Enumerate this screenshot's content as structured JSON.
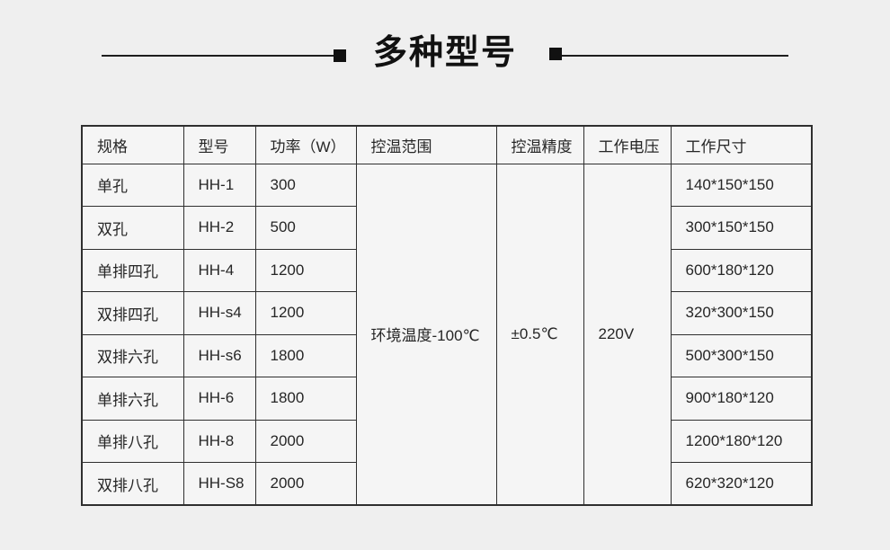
{
  "title": "多种型号",
  "table": {
    "headers": [
      "规格",
      "型号",
      "功率（W）",
      "控温范围",
      "控温精度",
      "工作电压",
      "工作尺寸"
    ],
    "merged": {
      "temp_range": "环境温度-100℃",
      "precision": "±0.5℃",
      "voltage": "220V"
    },
    "rows": [
      {
        "spec": "单孔",
        "model": "HH-1",
        "power": "300",
        "size": "140*150*150"
      },
      {
        "spec": "双孔",
        "model": "HH-2",
        "power": "500",
        "size": "300*150*150"
      },
      {
        "spec": "单排四孔",
        "model": "HH-4",
        "power": "1200",
        "size": "600*180*120"
      },
      {
        "spec": "双排四孔",
        "model": "HH-s4",
        "power": "1200",
        "size": "320*300*150"
      },
      {
        "spec": "双排六孔",
        "model": "HH-s6",
        "power": "1800",
        "size": "500*300*150"
      },
      {
        "spec": "单排六孔",
        "model": "HH-6",
        "power": "1800",
        "size": "900*180*120"
      },
      {
        "spec": "单排八孔",
        "model": "HH-8",
        "power": "2000",
        "size": "1200*180*120"
      },
      {
        "spec": "双排八孔",
        "model": "HH-S8",
        "power": "2000",
        "size": "620*320*120"
      }
    ]
  },
  "colors": {
    "accent_red": "#d92c22",
    "border": "#2f2f2f",
    "cell_bg": "#f5f5f5",
    "page_bg": "#efefef"
  }
}
